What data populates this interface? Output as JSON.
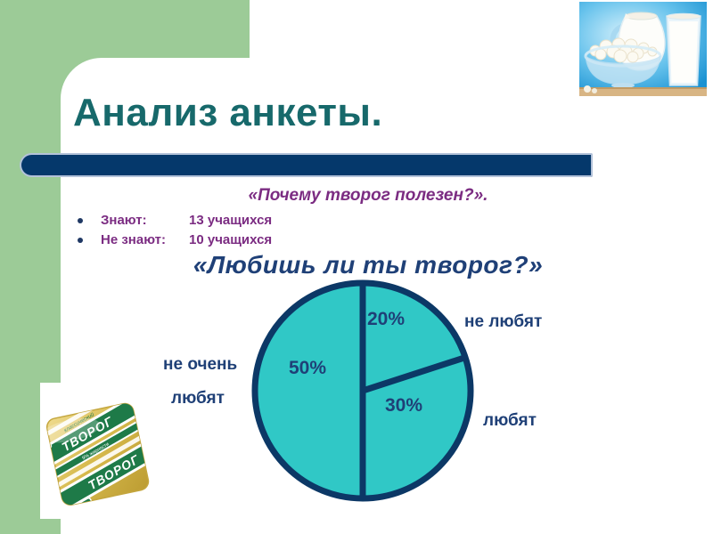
{
  "slide": {
    "title": "Анализ анкеты.",
    "subtitle": "«Почему творог полезен?».",
    "bullets": [
      {
        "label": "Знают:",
        "value": "13 учащихся"
      },
      {
        "label": "Не знают:",
        "value": "10 учащихся"
      }
    ],
    "chart_heading": "«Любишь ли ты творог?»"
  },
  "chart_data": {
    "type": "pie",
    "title": "«Любишь ли ты творог?»",
    "start_angle_deg": 0,
    "direction": "clockwise",
    "legend_position": "around",
    "fill_color": "#30C8C6",
    "outline_color": "#0C3866",
    "slices": [
      {
        "label": "не любят",
        "value": 20,
        "display": "20%"
      },
      {
        "label": "любят",
        "value": 30,
        "display": "30%"
      },
      {
        "label": "не очень любят",
        "label_top": "не очень",
        "label_bottom": "любят",
        "value": 50,
        "display": "50%"
      }
    ]
  },
  "images": {
    "milk_photo_alt": "кувшин молока, стакан молока и миска творога",
    "package_photo_alt": "пачка творога в золотой упаковке",
    "package_text": "ТВОРОГ",
    "package_subtext": "классический",
    "package_fat": "9% жирности"
  },
  "colors": {
    "title_teal": "#17696B",
    "accent_purple": "#7B2C82",
    "navy_text": "#1F4077",
    "bar_navy": "#05386B",
    "sidebar_green": "#9CCB97",
    "pie_fill": "#30C8C6",
    "pie_outline": "#0C3866"
  }
}
